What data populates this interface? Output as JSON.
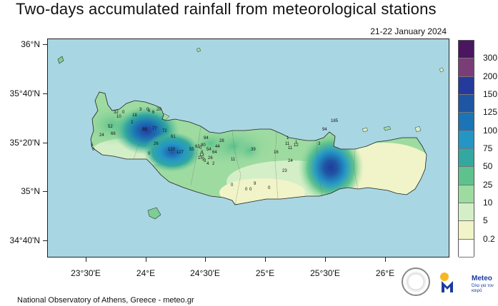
{
  "title": "Two-days accumulated rainfall from meteorological stations",
  "date": "21-22 January 2024",
  "lat_labels": [
    "36°N",
    "35°40'N",
    "35°20'N",
    "35°N",
    "34°40'N"
  ],
  "lon_labels": [
    "23°30'E",
    "24°E",
    "24°30'E",
    "25°E",
    "25°30'E",
    "26°E"
  ],
  "legend": {
    "colors": [
      "#4a1660",
      "#7a3d78",
      "#243a9c",
      "#1f56a4",
      "#1b74b6",
      "#2496c6",
      "#33a8a0",
      "#5ec28c",
      "#9edba0",
      "#d4efc8",
      "#f0f4c8",
      "#ffffff"
    ],
    "labels": [
      "300",
      "200",
      "150",
      "125",
      "100",
      "75",
      "50",
      "25",
      "10",
      "5",
      "0.2"
    ]
  },
  "stations": [
    "32",
    "10",
    "18",
    "0",
    "2",
    "3",
    "0",
    "6",
    "6",
    "28",
    "99",
    "77",
    "72",
    "24",
    "66",
    "52",
    "61",
    "26",
    "0",
    "120",
    "127",
    "55",
    "62",
    "80",
    "94",
    "26",
    "44",
    "64",
    "54",
    "28",
    "11",
    "39",
    "11",
    "12",
    "16",
    "24",
    "23",
    "0",
    "9",
    "0",
    "185",
    "94",
    "3",
    "0",
    "0",
    "1",
    "1",
    "11",
    "0",
    "5",
    "0",
    "8",
    "13",
    "15",
    "2",
    "3",
    "4",
    "2"
  ],
  "footer": "National Observatory of Athens, Greece - meteo.gr",
  "logo": {
    "name": "Meteo",
    "tagline": "Όλα για τον καιρό"
  }
}
